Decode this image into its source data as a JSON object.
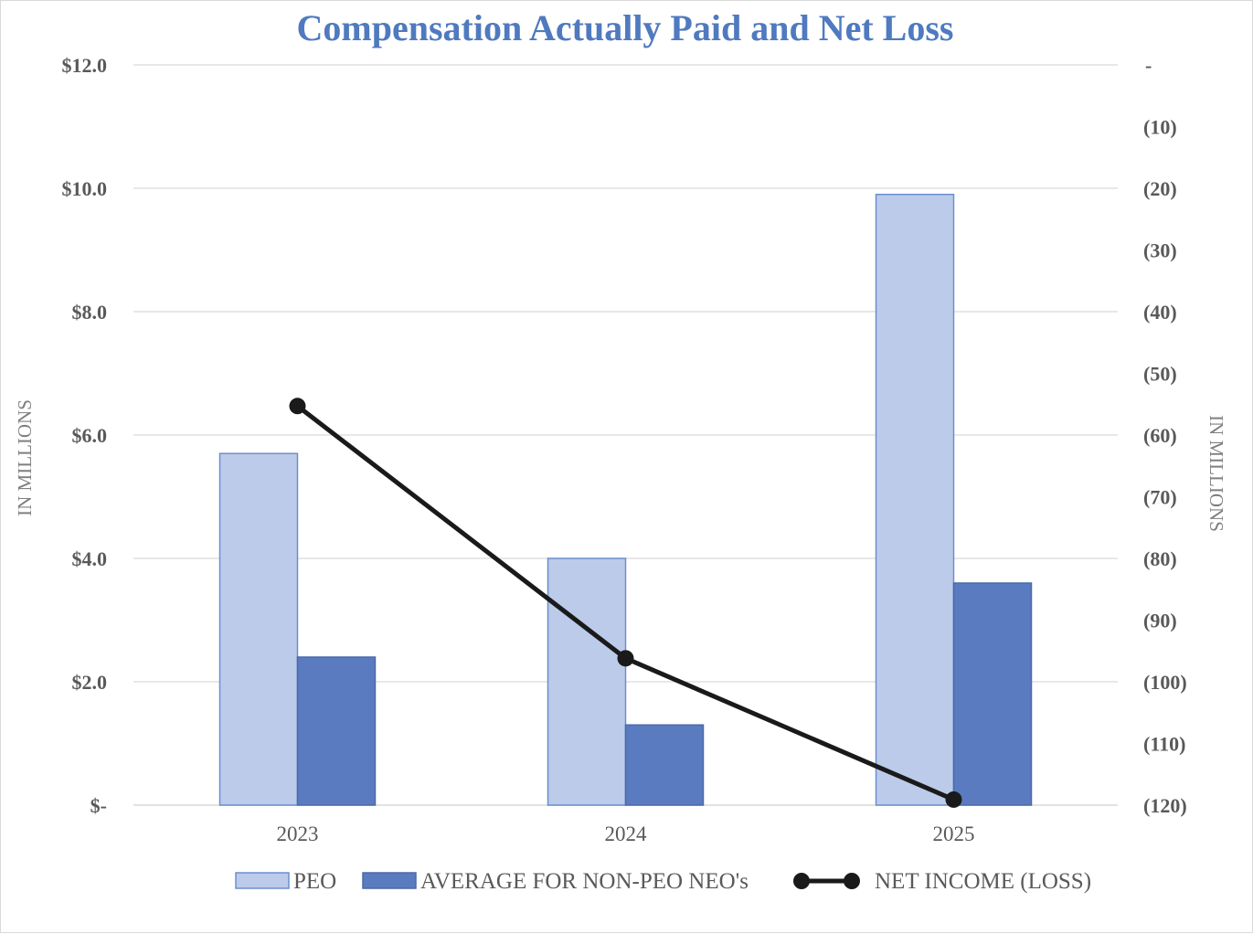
{
  "chart_data": {
    "type": "bar",
    "title": "Compensation Actually Paid and Net Loss",
    "categories": [
      "2023",
      "2024",
      "2025"
    ],
    "y_left": {
      "label": "IN MILLIONS",
      "range": [
        0,
        12
      ],
      "ticks": [
        0,
        2,
        4,
        6,
        8,
        10,
        12
      ],
      "tick_labels": [
        "$-",
        "$2.0",
        "$4.0",
        "$6.0",
        "$8.0",
        "$10.0",
        "$12.0"
      ]
    },
    "y_right": {
      "label": "IN MILLIONS",
      "range": [
        -120,
        0
      ],
      "ticks": [
        0,
        -10,
        -20,
        -30,
        -40,
        -50,
        -60,
        -70,
        -80,
        -90,
        -100,
        -110,
        -120
      ],
      "tick_labels": [
        "-",
        "(10)",
        "(20)",
        "(30)",
        "(40)",
        "(50)",
        "(60)",
        "(70)",
        "(80)",
        "(90)",
        "(100)",
        "(110)",
        "(120)"
      ]
    },
    "series": [
      {
        "name": "PEO",
        "type": "bar",
        "axis": "left",
        "color": "#bccbea",
        "stroke": "#6b8fce",
        "values": [
          5.7,
          4.0,
          9.9
        ]
      },
      {
        "name": "AVERAGE FOR NON-PEO NEO's",
        "type": "bar",
        "axis": "left",
        "color": "#5a7bbf",
        "stroke": "#4a6aa8",
        "values": [
          2.4,
          1.3,
          3.6
        ]
      },
      {
        "name": "NET INCOME (LOSS)",
        "type": "line",
        "axis": "right",
        "color": "#1a1a1a",
        "values": [
          -55.3,
          -96.2,
          -119.1
        ]
      }
    ],
    "grid": true,
    "legend_position": "bottom"
  }
}
